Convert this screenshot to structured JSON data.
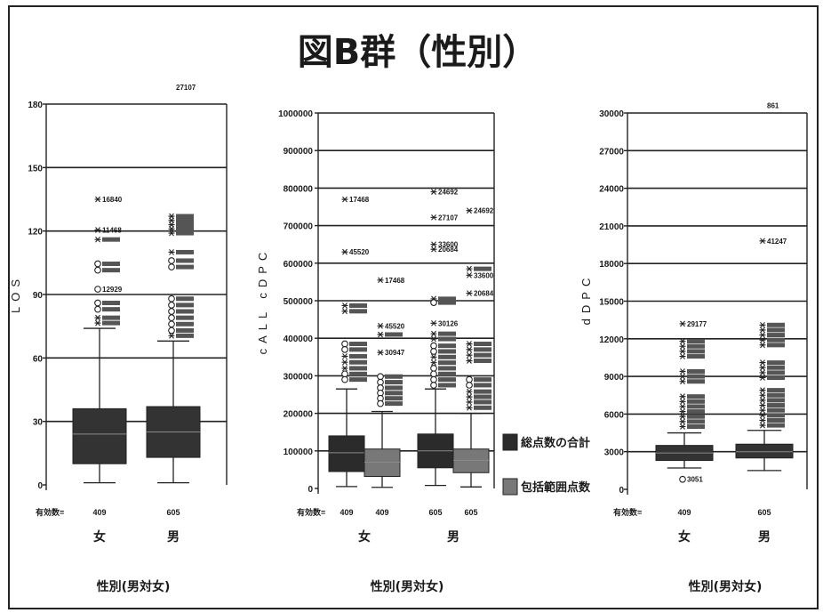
{
  "title": "図B群（性別）",
  "chart_data": [
    {
      "type": "box",
      "ylabel": "LOS",
      "xlabel": "性別(男対女)",
      "count_label": "有効数=",
      "ylim": [
        0,
        180
      ],
      "yticks": [
        0,
        30,
        60,
        90,
        120,
        150,
        180
      ],
      "grid": true,
      "series": [
        {
          "color": "#333333"
        }
      ],
      "groups": [
        {
          "label": "女",
          "boxes": [
            {
              "series": 0,
              "n": "409",
              "min": 1,
              "q1": 10,
              "median": 24,
              "q3": 36,
              "max": 74,
              "outliers": [
                {
                  "value": 135,
                  "marker": "*",
                  "label": "16840"
                },
                {
                  "value": 120.5,
                  "marker": "*",
                  "label": "11468"
                },
                {
                  "value": 116,
                  "marker": "*"
                },
                {
                  "value": 104.5,
                  "marker": "o"
                },
                {
                  "value": 101.5,
                  "marker": "o"
                },
                {
                  "value": 92.5,
                  "marker": "o",
                  "label": "12929"
                },
                {
                  "value": 86,
                  "marker": "o"
                },
                {
                  "value": 83,
                  "marker": "o"
                },
                {
                  "value": 79,
                  "marker": "*"
                },
                {
                  "value": 76.5,
                  "marker": "*"
                }
              ]
            }
          ]
        },
        {
          "label": "男",
          "boxes": [
            {
              "series": 0,
              "n": "605",
              "min": 1,
              "q1": 13,
              "median": 25,
              "q3": 37,
              "max": 68,
              "outliers": [
                {
                  "value": 188,
                  "marker": "",
                  "label": "27107"
                },
                {
                  "value": 127,
                  "marker": "*"
                },
                {
                  "value": 125,
                  "marker": "*"
                },
                {
                  "value": 123,
                  "marker": "*"
                },
                {
                  "value": 121,
                  "marker": "*"
                },
                {
                  "value": 119,
                  "marker": "*"
                },
                {
                  "value": 110,
                  "marker": "*"
                },
                {
                  "value": 106,
                  "marker": "o"
                },
                {
                  "value": 103,
                  "marker": "o"
                },
                {
                  "value": 88,
                  "marker": "o"
                },
                {
                  "value": 85,
                  "marker": "o"
                },
                {
                  "value": 82,
                  "marker": "o"
                },
                {
                  "value": 79,
                  "marker": "o"
                },
                {
                  "value": 76,
                  "marker": "o"
                },
                {
                  "value": 73,
                  "marker": "o"
                },
                {
                  "value": 70.5,
                  "marker": "*"
                }
              ]
            }
          ]
        }
      ]
    },
    {
      "type": "box",
      "ylabel": "cALL cDPC",
      "xlabel": "性別(男対女)",
      "count_label": "有効数=",
      "ylim": [
        0,
        1000000
      ],
      "yticks": [
        0,
        100000,
        200000,
        300000,
        400000,
        500000,
        600000,
        700000,
        800000,
        900000,
        1000000
      ],
      "grid": true,
      "legend": "right",
      "series": [
        {
          "name": "総点数の合計",
          "color": "#2b2b2b"
        },
        {
          "name": "包括範囲点数",
          "color": "#787878"
        }
      ],
      "groups": [
        {
          "label": "女",
          "boxes": [
            {
              "series": 0,
              "n": "409",
              "min": 5000,
              "q1": 45000,
              "median": 95000,
              "q3": 140000,
              "max": 265000,
              "outliers": [
                {
                  "value": 770000,
                  "marker": "*",
                  "label": "17468"
                },
                {
                  "value": 630000,
                  "marker": "*",
                  "label": "45520"
                },
                {
                  "value": 487000,
                  "marker": "*"
                },
                {
                  "value": 472000,
                  "marker": "*"
                },
                {
                  "value": 385000,
                  "marker": "o"
                },
                {
                  "value": 370000,
                  "marker": "o"
                },
                {
                  "value": 352000,
                  "marker": "*"
                },
                {
                  "value": 336000,
                  "marker": "*"
                },
                {
                  "value": 320000,
                  "marker": "*"
                },
                {
                  "value": 305000,
                  "marker": "o"
                },
                {
                  "value": 290000,
                  "marker": "o"
                }
              ]
            },
            {
              "series": 1,
              "n": "409",
              "min": 3000,
              "q1": 32000,
              "median": 70000,
              "q3": 105000,
              "max": 205000,
              "outliers": [
                {
                  "value": 555000,
                  "marker": "*",
                  "label": "17468"
                },
                {
                  "value": 433000,
                  "marker": "*",
                  "label": "45520"
                },
                {
                  "value": 410000,
                  "marker": "*"
                },
                {
                  "value": 362000,
                  "marker": "*",
                  "label": "30947"
                },
                {
                  "value": 298000,
                  "marker": "o"
                },
                {
                  "value": 283000,
                  "marker": "o"
                },
                {
                  "value": 268000,
                  "marker": "o"
                },
                {
                  "value": 254000,
                  "marker": "o"
                },
                {
                  "value": 240000,
                  "marker": "o"
                },
                {
                  "value": 226000,
                  "marker": "o"
                }
              ]
            }
          ]
        },
        {
          "label": "男",
          "boxes": [
            {
              "series": 0,
              "n": "605",
              "min": 8000,
              "q1": 55000,
              "median": 100000,
              "q3": 145000,
              "max": 265000,
              "outliers": [
                {
                  "value": 790000,
                  "marker": "*",
                  "label": "24692"
                },
                {
                  "value": 722000,
                  "marker": "*",
                  "label": "27107"
                },
                {
                  "value": 650000,
                  "marker": "*",
                  "label": "33600"
                },
                {
                  "value": 637000,
                  "marker": "*",
                  "label": "20684"
                },
                {
                  "value": 505000,
                  "marker": "*"
                },
                {
                  "value": 495000,
                  "marker": "o"
                },
                {
                  "value": 440000,
                  "marker": "*",
                  "label": "30126"
                },
                {
                  "value": 412000,
                  "marker": "*"
                },
                {
                  "value": 398000,
                  "marker": "*"
                },
                {
                  "value": 380000,
                  "marker": "o"
                },
                {
                  "value": 365000,
                  "marker": "o"
                },
                {
                  "value": 350000,
                  "marker": "*"
                },
                {
                  "value": 335000,
                  "marker": "*"
                },
                {
                  "value": 320000,
                  "marker": "o"
                },
                {
                  "value": 305000,
                  "marker": "o"
                },
                {
                  "value": 290000,
                  "marker": "o"
                },
                {
                  "value": 275000,
                  "marker": "o"
                }
              ]
            },
            {
              "series": 1,
              "n": "605",
              "min": 4000,
              "q1": 42000,
              "median": 75000,
              "q3": 105000,
              "max": 200000,
              "outliers": [
                {
                  "value": 740000,
                  "marker": "*",
                  "label": "24692"
                },
                {
                  "value": 585000,
                  "marker": "*"
                },
                {
                  "value": 568000,
                  "marker": "*",
                  "label": "33600"
                },
                {
                  "value": 520000,
                  "marker": "*",
                  "label": "20684"
                },
                {
                  "value": 385000,
                  "marker": "*"
                },
                {
                  "value": 370000,
                  "marker": "*"
                },
                {
                  "value": 355000,
                  "marker": "*"
                },
                {
                  "value": 340000,
                  "marker": "*"
                },
                {
                  "value": 290000,
                  "marker": "o"
                },
                {
                  "value": 275000,
                  "marker": "o"
                },
                {
                  "value": 258000,
                  "marker": "*"
                },
                {
                  "value": 244000,
                  "marker": "*"
                },
                {
                  "value": 230000,
                  "marker": "*"
                },
                {
                  "value": 215000,
                  "marker": "*"
                }
              ]
            }
          ]
        }
      ]
    },
    {
      "type": "box",
      "ylabel": "dDPC",
      "xlabel": "性別(男対女)",
      "count_label": "有効数=",
      "ylim": [
        0,
        30000
      ],
      "yticks": [
        0,
        3000,
        6000,
        9000,
        12000,
        15000,
        18000,
        21000,
        24000,
        27000,
        30000
      ],
      "grid": true,
      "series": [
        {
          "color": "#333333"
        }
      ],
      "groups": [
        {
          "label": "女",
          "boxes": [
            {
              "series": 0,
              "n": "409",
              "min": 1700,
              "q1": 2300,
              "median": 2900,
              "q3": 3500,
              "max": 4500,
              "outliers": [
                {
                  "value": 13200,
                  "marker": "*",
                  "label": "29177"
                },
                {
                  "value": 11800,
                  "marker": "*"
                },
                {
                  "value": 11400,
                  "marker": "*"
                },
                {
                  "value": 11000,
                  "marker": "*"
                },
                {
                  "value": 10600,
                  "marker": "*"
                },
                {
                  "value": 9400,
                  "marker": "*"
                },
                {
                  "value": 9000,
                  "marker": "*"
                },
                {
                  "value": 8600,
                  "marker": "*"
                },
                {
                  "value": 7400,
                  "marker": "*"
                },
                {
                  "value": 7000,
                  "marker": "*"
                },
                {
                  "value": 6600,
                  "marker": "*"
                },
                {
                  "value": 6200,
                  "marker": "*"
                },
                {
                  "value": 5800,
                  "marker": "*"
                },
                {
                  "value": 5400,
                  "marker": "*"
                },
                {
                  "value": 5000,
                  "marker": "*"
                },
                {
                  "value": 800,
                  "marker": "o",
                  "label": "3051"
                }
              ]
            }
          ]
        },
        {
          "label": "男",
          "boxes": [
            {
              "series": 0,
              "n": "605",
              "min": 1500,
              "q1": 2500,
              "median": 3000,
              "q3": 3600,
              "max": 4700,
              "outliers": [
                {
                  "value": 30600,
                  "marker": "",
                  "label": "861"
                },
                {
                  "value": 19800,
                  "marker": "*",
                  "label": "41247"
                },
                {
                  "value": 13100,
                  "marker": "*"
                },
                {
                  "value": 12700,
                  "marker": "*"
                },
                {
                  "value": 12300,
                  "marker": "*"
                },
                {
                  "value": 11900,
                  "marker": "*"
                },
                {
                  "value": 11500,
                  "marker": "*"
                },
                {
                  "value": 10100,
                  "marker": "*"
                },
                {
                  "value": 9700,
                  "marker": "*"
                },
                {
                  "value": 9300,
                  "marker": "*"
                },
                {
                  "value": 8900,
                  "marker": "*"
                },
                {
                  "value": 7900,
                  "marker": "*"
                },
                {
                  "value": 7500,
                  "marker": "*"
                },
                {
                  "value": 7100,
                  "marker": "*"
                },
                {
                  "value": 6700,
                  "marker": "*"
                },
                {
                  "value": 6300,
                  "marker": "*"
                },
                {
                  "value": 5900,
                  "marker": "*"
                },
                {
                  "value": 5500,
                  "marker": "*"
                },
                {
                  "value": 5100,
                  "marker": "*"
                }
              ]
            }
          ]
        }
      ]
    }
  ]
}
